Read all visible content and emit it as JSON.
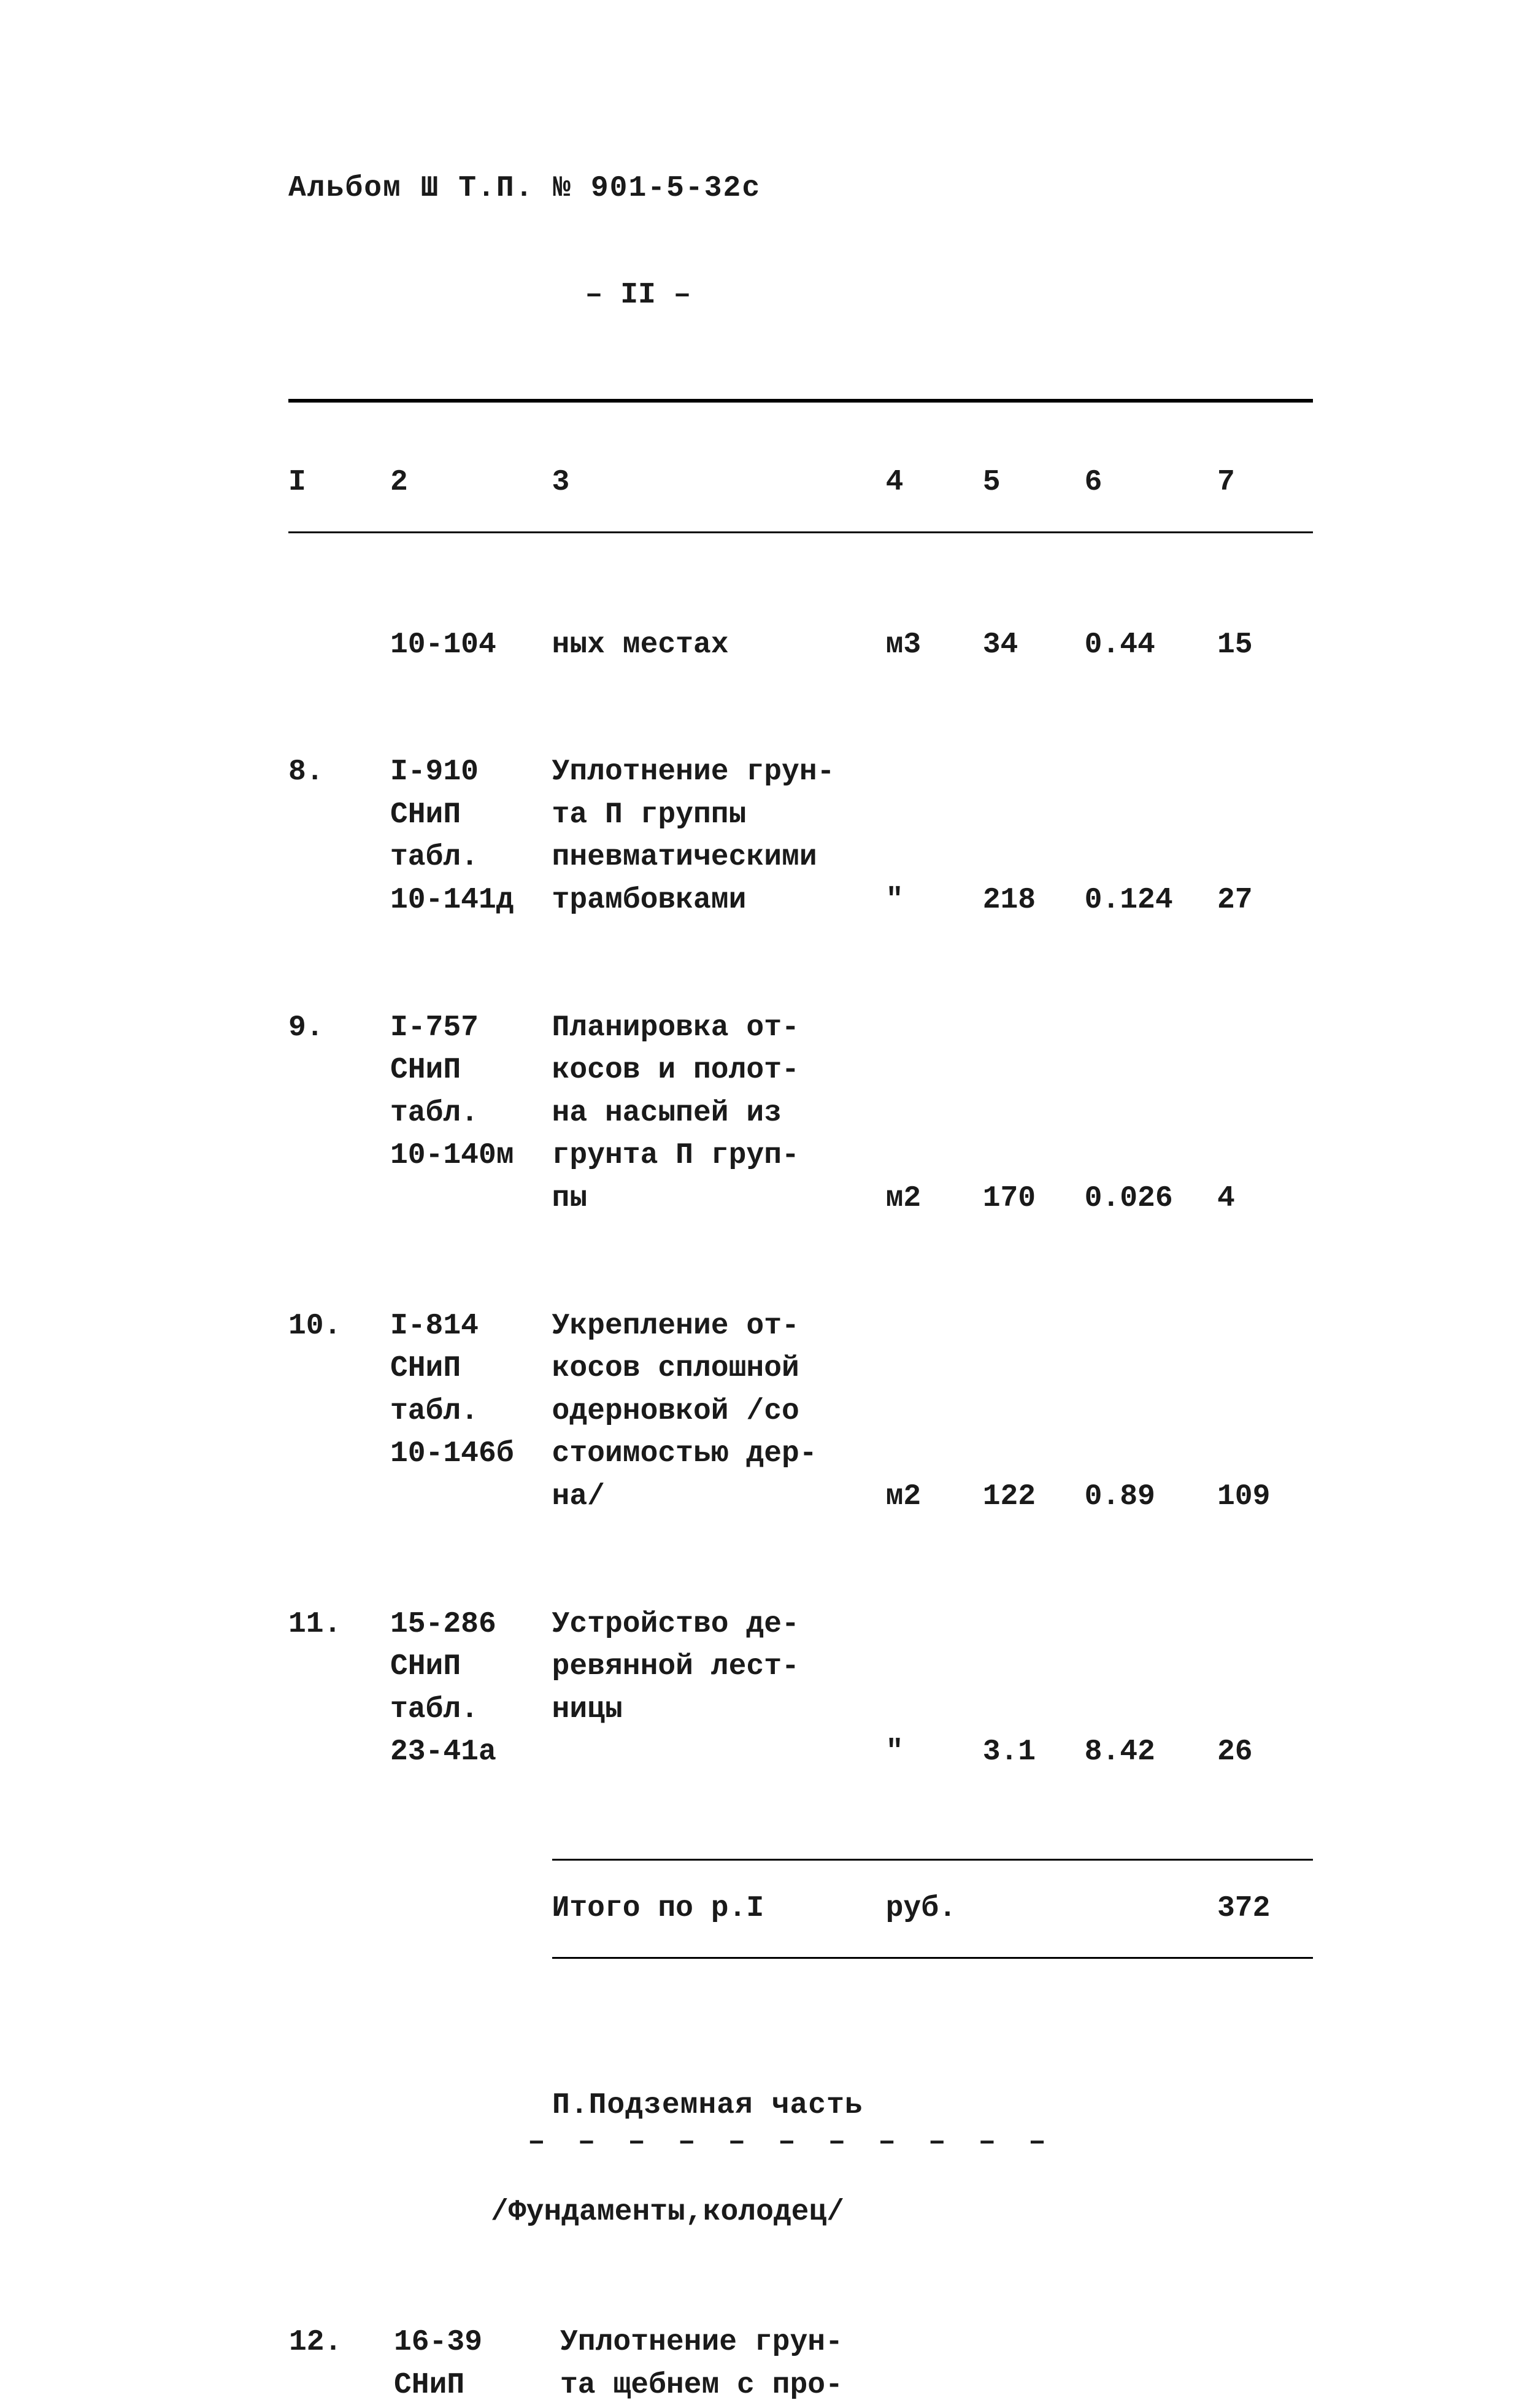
{
  "header": {
    "album_line": "Альбом Ш Т.П. № 901-5-32с",
    "page_marker": "– II –"
  },
  "columns": {
    "c1": "I",
    "c2": "2",
    "c3": "3",
    "c4": "4",
    "c5": "5",
    "c6": "6",
    "c7": "7"
  },
  "rows": [
    {
      "n": "",
      "ref": "10-104",
      "desc": "ных местах",
      "unit": "м3",
      "qty": "34",
      "rate": "0.44",
      "sum": "15"
    },
    {
      "n": "8.",
      "ref": "I-910\nСНиП\nтабл.\n10-141д",
      "desc": "Уплотнение грун-\nта П группы\nпневматическими\nтрамбовками",
      "unit": "\"",
      "qty": "218",
      "rate": "0.124",
      "sum": "27"
    },
    {
      "n": "9.",
      "ref": "I-757\nСНиП\nтабл.\n10-140м",
      "desc": "Планировка от-\nкосов и полот-\nна насыпей из\nгрунта П груп-\nпы",
      "unit": "м2",
      "qty": "170",
      "rate": "0.026",
      "sum": "4"
    },
    {
      "n": "10.",
      "ref": "I-814\nСНиП\nтабл.\n10-146б",
      "desc": "Укрепление от-\nкосов сплошной\nодерновкой /со\nстоимостью дер-\nна/",
      "unit": "м2",
      "qty": "122",
      "rate": "0.89",
      "sum": "109"
    },
    {
      "n": "11.",
      "ref": "15-286\nСНиП\nтабл.\n23-41а",
      "desc": "Устройство де-\nревянной лест-\nницы",
      "unit": "\"",
      "qty": "3.1",
      "rate": "8.42",
      "sum": "26"
    }
  ],
  "total": {
    "label": "Итого по р.I",
    "unit": "руб.",
    "sum": "372"
  },
  "section2": {
    "title": "П.Подземная часть",
    "dashes": "– – – – – – – – – – –",
    "paren": "/Фундаменты,колодец/"
  },
  "row12": {
    "n": "12.",
    "ref": "16-39\nСНиП",
    "desc": "Уплотнение грун-\nта щебнем с про-"
  }
}
